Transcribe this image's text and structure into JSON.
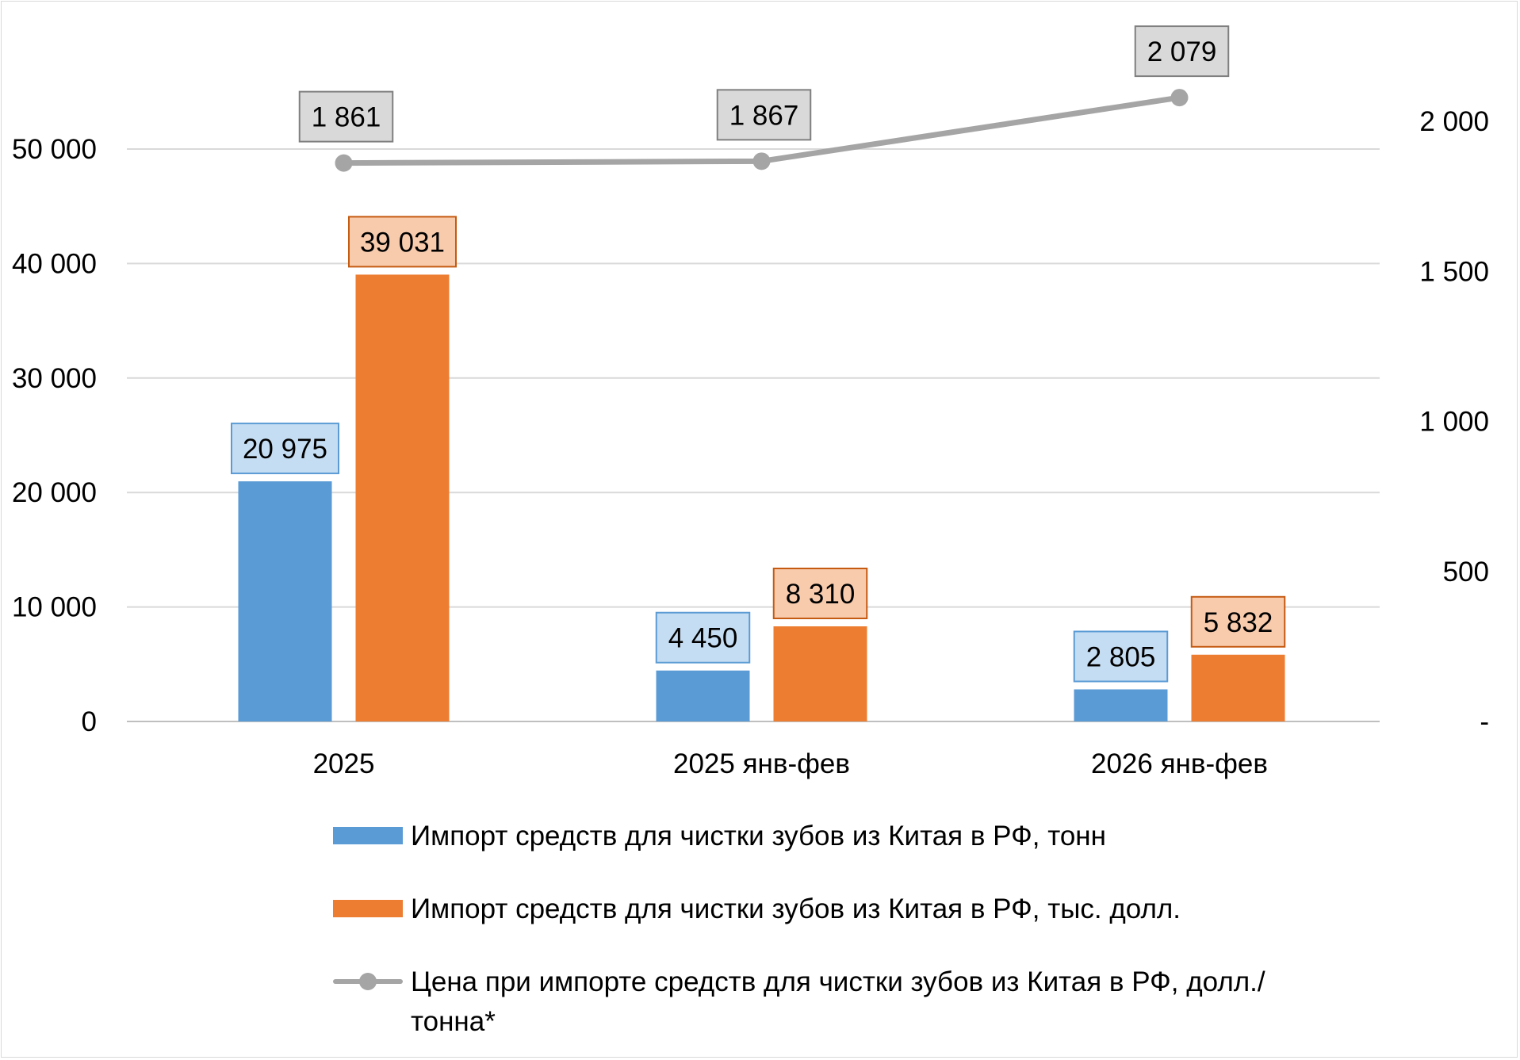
{
  "chart_data": {
    "type": "bar",
    "categories": [
      "2025",
      "2025 янв-фев",
      "2026 янв-фев"
    ],
    "series": [
      {
        "name": "Импорт средств для чистки зубов из Китая в РФ, тонн",
        "type": "bar",
        "axis": "left",
        "color": "#5b9bd5",
        "label_fill": "#c5ddf2",
        "label_border": "#5b9bd5",
        "values": [
          20975,
          4450,
          2805
        ],
        "labels": [
          "20 975",
          "4 450",
          "2 805"
        ]
      },
      {
        "name": "Импорт средств для чистки зубов из Китая в РФ, тыс. долл.",
        "type": "bar",
        "axis": "left",
        "color": "#ed7d31",
        "label_fill": "#f8cbad",
        "label_border": "#c55a11",
        "values": [
          39031,
          8310,
          5832
        ],
        "labels": [
          "39 031",
          "8 310",
          "5 832"
        ]
      },
      {
        "name": "Цена при импорте средств для чистки зубов из Китая в РФ, долл./тонна*",
        "type": "line",
        "axis": "right",
        "color": "#a5a5a5",
        "label_fill": "#d9d9d9",
        "label_border": "#7f7f7f",
        "values": [
          1861,
          1867,
          2079
        ],
        "labels": [
          "1 861",
          "1 867",
          "2 079"
        ]
      }
    ],
    "y_left": {
      "min": 0,
      "max": 50000,
      "ticks": [
        0,
        10000,
        20000,
        30000,
        40000,
        50000
      ],
      "tick_labels": [
        "0",
        "10 000",
        "20 000",
        "30 000",
        "40 000",
        "50 000"
      ]
    },
    "y_right": {
      "min": 0,
      "max": 2000,
      "ticks": [
        0,
        500,
        1000,
        1500,
        2000
      ],
      "tick_labels": [
        "-",
        "500",
        "1 000",
        "1 500",
        "2 000"
      ]
    },
    "grid": true,
    "legend_position": "bottom"
  },
  "legend": {
    "items": [
      {
        "label": "Импорт средств для чистки зубов из Китая в РФ, тонн"
      },
      {
        "label": "Импорт средств для чистки зубов из Китая в РФ, тыс. долл."
      },
      {
        "label": "Цена при импорте средств для чистки зубов из Китая в РФ, долл./тонна*"
      }
    ]
  }
}
